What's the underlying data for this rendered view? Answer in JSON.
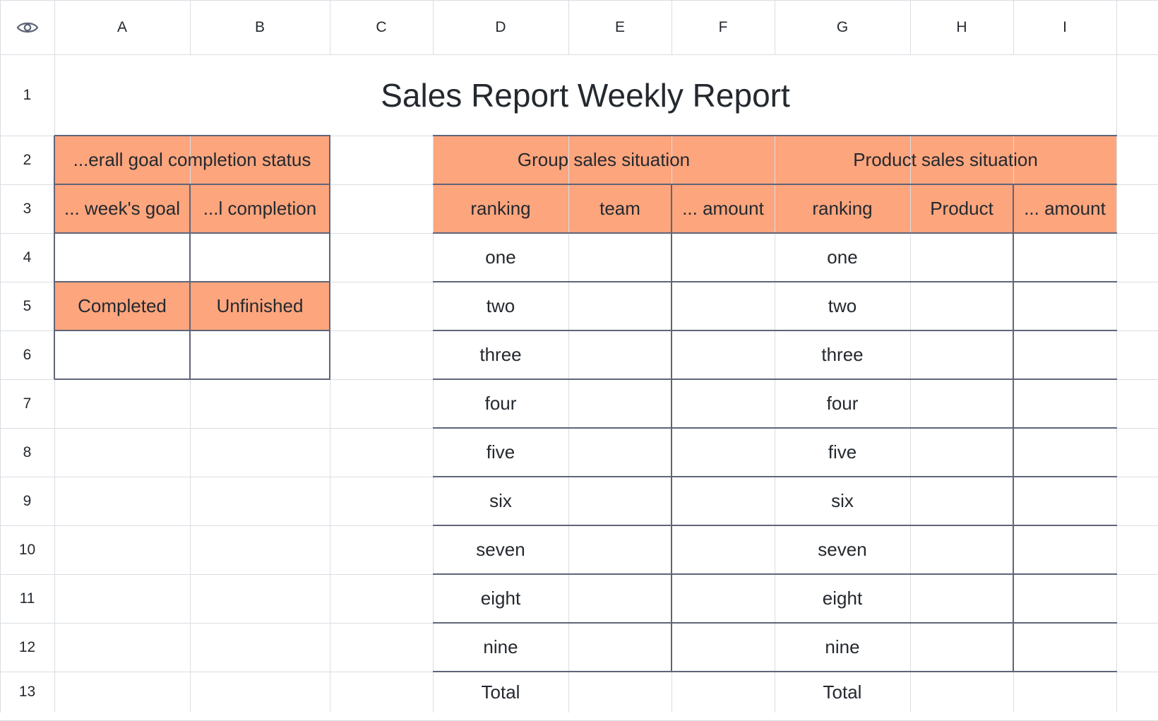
{
  "sheet": {
    "view_icon": "eye-icon",
    "columns": [
      "A",
      "B",
      "C",
      "D",
      "E",
      "F",
      "G",
      "H",
      "I"
    ],
    "rows": [
      "1",
      "2",
      "3",
      "4",
      "5",
      "6",
      "7",
      "8",
      "9",
      "10",
      "11",
      "12",
      "13"
    ],
    "title": "Sales Report Weekly Report",
    "colors": {
      "header_fill": "#fda57d",
      "grid_line": "#d9dde2",
      "table_border": "#5f6478",
      "text": "#24292f"
    }
  },
  "goal_table": {
    "header": "...erall goal completion status",
    "col1": "... week's goal",
    "col2": "...l completion",
    "completed_label": "Completed",
    "unfinished_label": "Unfinished"
  },
  "group_sales": {
    "header": "Group sales situation",
    "col_ranking": "ranking",
    "col_team": "team",
    "col_amount": "... amount",
    "total_label": "Total"
  },
  "product_sales": {
    "header": "Product sales situation",
    "col_ranking": "ranking",
    "col_product": "Product",
    "col_amount": "... amount",
    "total_label": "Total"
  },
  "rankings": [
    "one",
    "two",
    "three",
    "four",
    "five",
    "six",
    "seven",
    "eight",
    "nine"
  ]
}
